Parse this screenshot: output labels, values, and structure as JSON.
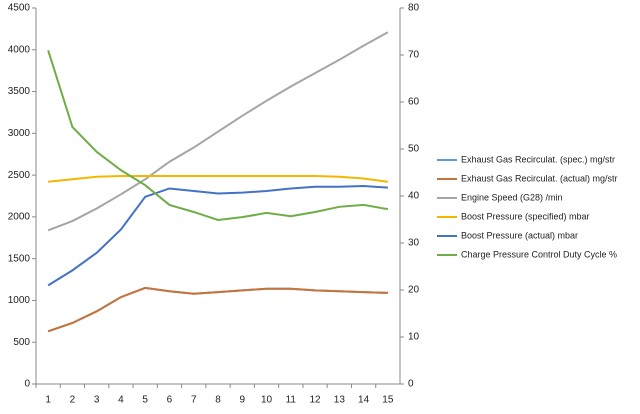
{
  "chart_data": {
    "type": "line",
    "categories": [
      "1",
      "2",
      "3",
      "4",
      "5",
      "6",
      "7",
      "8",
      "9",
      "10",
      "11",
      "12",
      "13",
      "14",
      "15"
    ],
    "ylim": [
      0,
      4500
    ],
    "yticks": [
      0,
      500,
      1000,
      1500,
      2000,
      2500,
      3000,
      3500,
      4000,
      4500
    ],
    "y2lim": [
      0,
      80
    ],
    "y2ticks": [
      0,
      10,
      20,
      30,
      40,
      50,
      60,
      70,
      80
    ],
    "legend": "right",
    "grid": false,
    "series": [
      {
        "name": "Exhaust Gas Recirculat. (spec.)  mg/str",
        "color": "#5b9bd5",
        "values": [
          630,
          730,
          870,
          1040,
          1150,
          1110,
          1080,
          1100,
          1120,
          1140,
          1140,
          1120,
          1110,
          1100,
          1090
        ]
      },
      {
        "name": "Exhaust Gas Recirculat. (actual)  mg/str",
        "color": "#c8733a",
        "values": [
          630,
          730,
          870,
          1040,
          1150,
          1110,
          1080,
          1100,
          1120,
          1140,
          1140,
          1120,
          1110,
          1100,
          1090
        ]
      },
      {
        "name": "Engine Speed (G28)  /min",
        "color": "#a5a5a5",
        "values": [
          1840,
          1950,
          2100,
          2270,
          2450,
          2660,
          2830,
          3020,
          3210,
          3390,
          3560,
          3720,
          3880,
          4050,
          4210
        ]
      },
      {
        "name": "Boost Pressure (specified)  mbar",
        "color": "#f2b800",
        "values": [
          2420,
          2450,
          2480,
          2490,
          2490,
          2490,
          2490,
          2490,
          2490,
          2490,
          2490,
          2490,
          2480,
          2460,
          2420
        ]
      },
      {
        "name": "Boost Pressure (actual)  mbar",
        "color": "#4472c4",
        "values": [
          1180,
          1360,
          1570,
          1850,
          2240,
          2340,
          2310,
          2280,
          2290,
          2310,
          2340,
          2360,
          2360,
          2370,
          2350
        ]
      },
      {
        "name": "Charge Pressure Control Duty Cycle  %",
        "color": "#70ad47",
        "axis": "y2",
        "values": [
          71,
          54.7,
          49.4,
          45.5,
          42.3,
          38.1,
          36.6,
          34.9,
          35.5,
          36.4,
          35.7,
          36.6,
          37.7,
          38.1,
          37.2
        ]
      }
    ]
  }
}
